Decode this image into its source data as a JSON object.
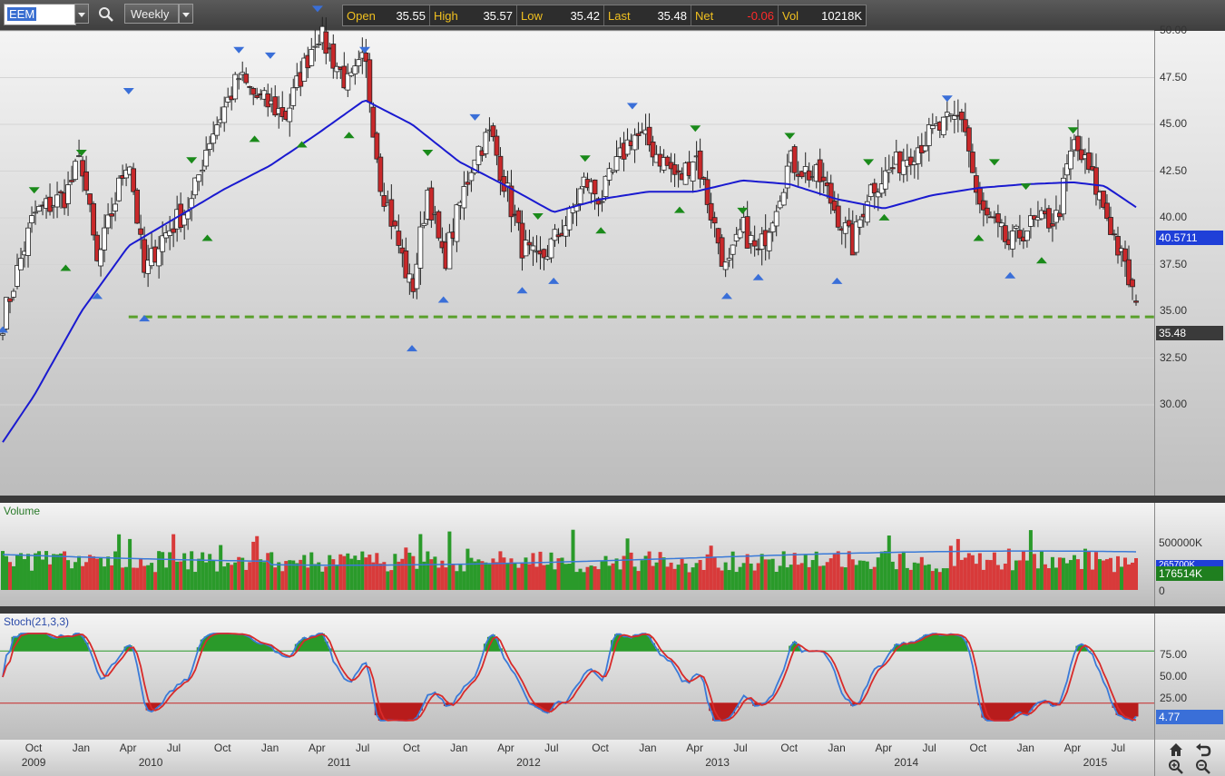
{
  "toolbar": {
    "symbol": "EEM",
    "interval": "Weekly",
    "quote": [
      {
        "label": "Open",
        "value": "35.55"
      },
      {
        "label": "High",
        "value": "35.57"
      },
      {
        "label": "Low",
        "value": "35.42"
      },
      {
        "label": "Last",
        "value": "35.48"
      },
      {
        "label": "Net",
        "value": "-0.06",
        "color": "#ff2a2a"
      },
      {
        "label": "Vol",
        "value": "10218K"
      }
    ]
  },
  "colors": {
    "up": "#ffffff",
    "down": "#c8282a",
    "ma": "#1a1ad0",
    "support": "#5aa02c",
    "vol_up": "#2a9a2a",
    "vol_down": "#d83a3a",
    "stoch_k": "#3a7ad8",
    "stoch_d": "#d82a2a"
  },
  "price_panel": {
    "y_ticks": [
      "50.00",
      "47.50",
      "45.00",
      "42.50",
      "40.00",
      "37.50",
      "35.00",
      "32.50",
      "30.00"
    ],
    "ma_tag": "40.5711",
    "last_tag": "35.48",
    "support_level": 34.7
  },
  "volume_panel": {
    "title": "Volume",
    "y_ticks": [
      "500000K",
      "0"
    ],
    "ma_tag": "265700K",
    "last_tag": "176514K"
  },
  "stoch_panel": {
    "title": "Stoch(21,3,3)",
    "y_ticks": [
      "75.00",
      "50.00",
      "25.00",
      "0.00"
    ],
    "last_tag": "4.77",
    "upper": 80,
    "lower": 20
  },
  "x_axis": {
    "months": [
      "Oct",
      "Jan",
      "Apr",
      "Jul",
      "Oct",
      "Jan",
      "Apr",
      "Jul",
      "Oct",
      "Jan",
      "Apr",
      "Jul",
      "Oct",
      "Jan",
      "Apr",
      "Jul",
      "Oct",
      "Jan",
      "Apr",
      "Jul",
      "Oct",
      "Jan",
      "Apr",
      "Jul"
    ],
    "years": [
      "2009",
      "2010",
      "2011",
      "2012",
      "2013",
      "2014",
      "2015"
    ]
  },
  "chart_data": {
    "type": "candlestick",
    "symbol": "EEM",
    "interval": "Weekly",
    "x_range": [
      "2009-08",
      "2015-08"
    ],
    "ylim": [
      27.5,
      51.5
    ],
    "close_path": [
      {
        "date": "2009-08",
        "close": 34.5
      },
      {
        "date": "2009-10",
        "close": 40.2
      },
      {
        "date": "2009-12",
        "close": 41.2
      },
      {
        "date": "2010-01",
        "close": 43.2
      },
      {
        "date": "2010-02",
        "close": 37.5
      },
      {
        "date": "2010-04",
        "close": 43.5
      },
      {
        "date": "2010-05",
        "close": 37.0
      },
      {
        "date": "2010-06",
        "close": 38.8
      },
      {
        "date": "2010-08",
        "close": 40.8
      },
      {
        "date": "2010-09",
        "close": 44.0
      },
      {
        "date": "2010-11",
        "close": 47.5
      },
      {
        "date": "2010-12",
        "close": 46.5
      },
      {
        "date": "2011-02",
        "close": 45.5
      },
      {
        "date": "2011-04",
        "close": 50.0
      },
      {
        "date": "2011-06",
        "close": 47.0
      },
      {
        "date": "2011-07",
        "close": 48.5
      },
      {
        "date": "2011-08",
        "close": 42.0
      },
      {
        "date": "2011-10",
        "close": 36.0
      },
      {
        "date": "2011-11",
        "close": 41.5
      },
      {
        "date": "2011-12",
        "close": 37.5
      },
      {
        "date": "2012-02",
        "close": 43.5
      },
      {
        "date": "2012-03",
        "close": 44.5
      },
      {
        "date": "2012-05",
        "close": 38.5
      },
      {
        "date": "2012-06",
        "close": 37.5
      },
      {
        "date": "2012-08",
        "close": 40.0
      },
      {
        "date": "2012-09",
        "close": 42.0
      },
      {
        "date": "2012-10",
        "close": 41.0
      },
      {
        "date": "2012-12",
        "close": 44.5
      },
      {
        "date": "2013-01",
        "close": 44.0
      },
      {
        "date": "2013-03",
        "close": 42.0
      },
      {
        "date": "2013-04",
        "close": 43.5
      },
      {
        "date": "2013-06",
        "close": 37.0
      },
      {
        "date": "2013-07",
        "close": 39.5
      },
      {
        "date": "2013-08",
        "close": 38.0
      },
      {
        "date": "2013-10",
        "close": 43.0
      },
      {
        "date": "2013-12",
        "close": 42.0
      },
      {
        "date": "2014-02",
        "close": 38.5
      },
      {
        "date": "2014-03",
        "close": 41.5
      },
      {
        "date": "2014-05",
        "close": 43.0
      },
      {
        "date": "2014-07",
        "close": 44.5
      },
      {
        "date": "2014-09",
        "close": 45.5
      },
      {
        "date": "2014-10",
        "close": 40.5
      },
      {
        "date": "2014-12",
        "close": 38.5
      },
      {
        "date": "2015-01",
        "close": 39.5
      },
      {
        "date": "2015-03",
        "close": 40.0
      },
      {
        "date": "2015-04",
        "close": 44.0
      },
      {
        "date": "2015-05",
        "close": 42.5
      },
      {
        "date": "2015-06",
        "close": 40.5
      },
      {
        "date": "2015-07",
        "close": 38.0
      },
      {
        "date": "2015-08",
        "close": 35.48
      }
    ],
    "moving_average": [
      {
        "date": "2009-08",
        "value": 28.0
      },
      {
        "date": "2009-10",
        "value": 30.5
      },
      {
        "date": "2010-01",
        "value": 35.0
      },
      {
        "date": "2010-04",
        "value": 38.5
      },
      {
        "date": "2010-07",
        "value": 40.0
      },
      {
        "date": "2010-10",
        "value": 41.5
      },
      {
        "date": "2011-01",
        "value": 42.8
      },
      {
        "date": "2011-04",
        "value": 44.5
      },
      {
        "date": "2011-07",
        "value": 46.3
      },
      {
        "date": "2011-10",
        "value": 45.0
      },
      {
        "date": "2012-01",
        "value": 43.0
      },
      {
        "date": "2012-04",
        "value": 41.7
      },
      {
        "date": "2012-07",
        "value": 40.3
      },
      {
        "date": "2012-10",
        "value": 41.0
      },
      {
        "date": "2013-01",
        "value": 41.4
      },
      {
        "date": "2013-04",
        "value": 41.4
      },
      {
        "date": "2013-07",
        "value": 42.0
      },
      {
        "date": "2013-10",
        "value": 41.8
      },
      {
        "date": "2014-01",
        "value": 41.0
      },
      {
        "date": "2014-04",
        "value": 40.5
      },
      {
        "date": "2014-07",
        "value": 41.2
      },
      {
        "date": "2014-10",
        "value": 41.6
      },
      {
        "date": "2015-01",
        "value": 41.8
      },
      {
        "date": "2015-04",
        "value": 41.9
      },
      {
        "date": "2015-06",
        "value": 41.7
      },
      {
        "date": "2015-08",
        "value": 40.57
      }
    ],
    "swing_markers": [
      {
        "date": "2009-08",
        "price": 34.2,
        "kind": "low"
      },
      {
        "date": "2009-10",
        "price": 41.3,
        "kind": "high"
      },
      {
        "date": "2009-12",
        "price": 37.5,
        "kind": "low"
      },
      {
        "date": "2010-01",
        "price": 43.3,
        "kind": "high"
      },
      {
        "date": "2010-02",
        "price": 36.0,
        "kind": "low"
      },
      {
        "date": "2010-04",
        "price": 46.6,
        "kind": "high"
      },
      {
        "date": "2010-05",
        "price": 34.8,
        "kind": "low"
      },
      {
        "date": "2010-08",
        "price": 42.9,
        "kind": "high"
      },
      {
        "date": "2010-09",
        "price": 39.1,
        "kind": "low"
      },
      {
        "date": "2010-11",
        "price": 48.8,
        "kind": "high"
      },
      {
        "date": "2010-12",
        "price": 44.4,
        "kind": "low"
      },
      {
        "date": "2011-01",
        "price": 48.5,
        "kind": "high"
      },
      {
        "date": "2011-03",
        "price": 44.1,
        "kind": "low"
      },
      {
        "date": "2011-04",
        "price": 51.0,
        "kind": "high"
      },
      {
        "date": "2011-07",
        "price": 48.8,
        "kind": "high"
      },
      {
        "date": "2011-06",
        "price": 44.6,
        "kind": "low"
      },
      {
        "date": "2011-10",
        "price": 33.2,
        "kind": "low"
      },
      {
        "date": "2011-11",
        "price": 43.3,
        "kind": "high"
      },
      {
        "date": "2011-12",
        "price": 35.8,
        "kind": "low"
      },
      {
        "date": "2012-02",
        "price": 45.2,
        "kind": "high"
      },
      {
        "date": "2012-05",
        "price": 36.3,
        "kind": "low"
      },
      {
        "date": "2012-06",
        "price": 39.9,
        "kind": "high"
      },
      {
        "date": "2012-07",
        "price": 36.8,
        "kind": "low"
      },
      {
        "date": "2012-09",
        "price": 43.0,
        "kind": "high"
      },
      {
        "date": "2012-10",
        "price": 39.5,
        "kind": "low"
      },
      {
        "date": "2012-12",
        "price": 45.8,
        "kind": "high"
      },
      {
        "date": "2013-03",
        "price": 40.6,
        "kind": "low"
      },
      {
        "date": "2013-04",
        "price": 44.6,
        "kind": "high"
      },
      {
        "date": "2013-06",
        "price": 36.0,
        "kind": "low"
      },
      {
        "date": "2013-07",
        "price": 40.2,
        "kind": "high"
      },
      {
        "date": "2013-08",
        "price": 37.0,
        "kind": "low"
      },
      {
        "date": "2013-10",
        "price": 44.2,
        "kind": "high"
      },
      {
        "date": "2014-01",
        "price": 36.8,
        "kind": "low"
      },
      {
        "date": "2014-03",
        "price": 42.8,
        "kind": "high"
      },
      {
        "date": "2014-04",
        "price": 40.2,
        "kind": "low"
      },
      {
        "date": "2014-08",
        "price": 46.2,
        "kind": "high"
      },
      {
        "date": "2014-10",
        "price": 39.1,
        "kind": "low"
      },
      {
        "date": "2014-11",
        "price": 42.8,
        "kind": "high"
      },
      {
        "date": "2014-12",
        "price": 37.1,
        "kind": "low"
      },
      {
        "date": "2015-01",
        "price": 41.5,
        "kind": "high"
      },
      {
        "date": "2015-02",
        "price": 37.9,
        "kind": "low"
      },
      {
        "date": "2015-04",
        "price": 44.5,
        "kind": "high"
      }
    ]
  }
}
